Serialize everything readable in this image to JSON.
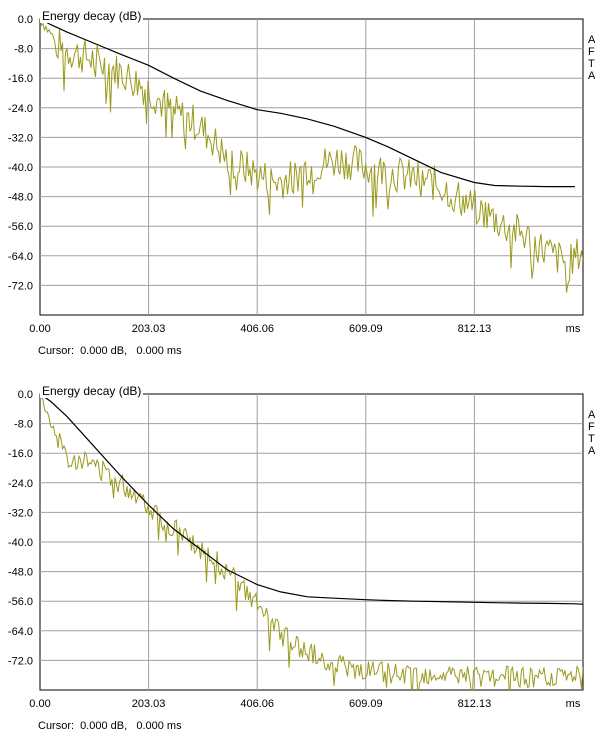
{
  "colors": {
    "edc": "#000000",
    "etc": "#9a9a1c",
    "grid": "#a0a0a0",
    "frame": "#000000"
  },
  "chart_data": [
    {
      "type": "line",
      "title": "Energy decay (dB)",
      "xlabel": "ms",
      "ylabel": "Energy decay (dB)",
      "xlim": [
        0,
        1015.16
      ],
      "ylim": [
        -80,
        0
      ],
      "grid": true,
      "xticks": [
        "0.00",
        "203.03",
        "406.06",
        "609.09",
        "812.13",
        "ms"
      ],
      "yticks": [
        "0.0",
        "-8.0",
        "-16.0",
        "-24.0",
        "-32.0",
        "-40.0",
        "-48.0",
        "-56.0",
        "-64.0",
        "-72.0"
      ],
      "cursor": {
        "label": "Cursor:",
        "value": "0.000 dB,   0.000 ms"
      },
      "side_text": [
        "A",
        "F",
        "T",
        "A"
      ],
      "series": [
        {
          "color": "#000000",
          "x": [
            0,
            20,
            50,
            100,
            150,
            203,
            250,
            300,
            350,
            406,
            450,
            500,
            550,
            609,
            650,
            700,
            750,
            812,
            850,
            900,
            950,
            1000
          ],
          "values": [
            0,
            -1.5,
            -3.5,
            -6.5,
            -9.5,
            -12.5,
            -16,
            -19.5,
            -22,
            -24.5,
            -25.5,
            -27,
            -29,
            -32,
            -34.5,
            -38,
            -41.5,
            -44.2,
            -45,
            -45.2,
            -45.3,
            -45.3
          ]
        },
        {
          "color": "#9a9a1c",
          "x": [
            0,
            10,
            20,
            40,
            60,
            80,
            100,
            130,
            160,
            190,
            203,
            230,
            260,
            290,
            320,
            350,
            380,
            406,
            440,
            470,
            500,
            530,
            560,
            590,
            609,
            640,
            670,
            700,
            730,
            760,
            790,
            812,
            840,
            870,
            900,
            930,
            960,
            990,
            1010
          ],
          "values": [
            0,
            -2,
            -4,
            -8,
            -9,
            -10,
            -11,
            -13,
            -15,
            -18,
            -19,
            -23,
            -26,
            -28,
            -32,
            -38,
            -40,
            -42,
            -44,
            -43,
            -40,
            -39,
            -38,
            -39,
            -40,
            -41,
            -42,
            -43,
            -44,
            -46,
            -49,
            -51,
            -53,
            -56,
            -58,
            -61,
            -64,
            -66,
            -63
          ],
          "noise": {
            "amp": 5,
            "seed": 7
          }
        }
      ]
    },
    {
      "type": "line",
      "title": "Energy decay (dB)",
      "xlabel": "ms",
      "ylabel": "Energy decay (dB)",
      "xlim": [
        0,
        1015.16
      ],
      "ylim": [
        -80,
        0
      ],
      "grid": true,
      "xticks": [
        "0.00",
        "203.03",
        "406.06",
        "609.09",
        "812.13",
        "ms"
      ],
      "yticks": [
        "0.0",
        "-8.0",
        "-16.0",
        "-24.0",
        "-32.0",
        "-40.0",
        "-48.0",
        "-56.0",
        "-64.0",
        "-72.0"
      ],
      "cursor": {
        "label": "Cursor:",
        "value": "0.000 dB,   0.000 ms"
      },
      "side_text": [
        "A",
        "F",
        "T",
        "A"
      ],
      "series": [
        {
          "color": "#000000",
          "x": [
            0,
            20,
            50,
            100,
            150,
            203,
            250,
            300,
            350,
            406,
            450,
            500,
            550,
            609,
            650,
            700,
            750,
            812,
            850,
            900,
            950,
            1000,
            1015
          ],
          "values": [
            0,
            -2,
            -6,
            -14,
            -22,
            -30,
            -36.5,
            -42,
            -47.5,
            -51.5,
            -53.5,
            -54.8,
            -55.2,
            -55.6,
            -55.8,
            -56,
            -56.1,
            -56.3,
            -56.4,
            -56.5,
            -56.6,
            -56.7,
            -56.8
          ]
        },
        {
          "color": "#9a9a1c",
          "x": [
            0,
            10,
            20,
            40,
            60,
            80,
            100,
            130,
            160,
            190,
            203,
            230,
            260,
            290,
            320,
            350,
            380,
            406,
            430,
            460,
            490,
            520,
            560,
            609,
            650,
            700,
            750,
            812,
            850,
            900,
            950,
            1000,
            1015
          ],
          "values": [
            0,
            -4,
            -8,
            -14,
            -17,
            -18,
            -19,
            -22,
            -25,
            -28,
            -30,
            -34,
            -37,
            -41,
            -44,
            -48,
            -53,
            -57,
            -62,
            -66,
            -69,
            -71,
            -73,
            -75,
            -75.5,
            -76,
            -76.2,
            -76.4,
            -76.5,
            -76.6,
            -76.6,
            -76.7,
            -76.7
          ],
          "noise": {
            "amp": 3,
            "seed": 13
          }
        }
      ]
    }
  ]
}
